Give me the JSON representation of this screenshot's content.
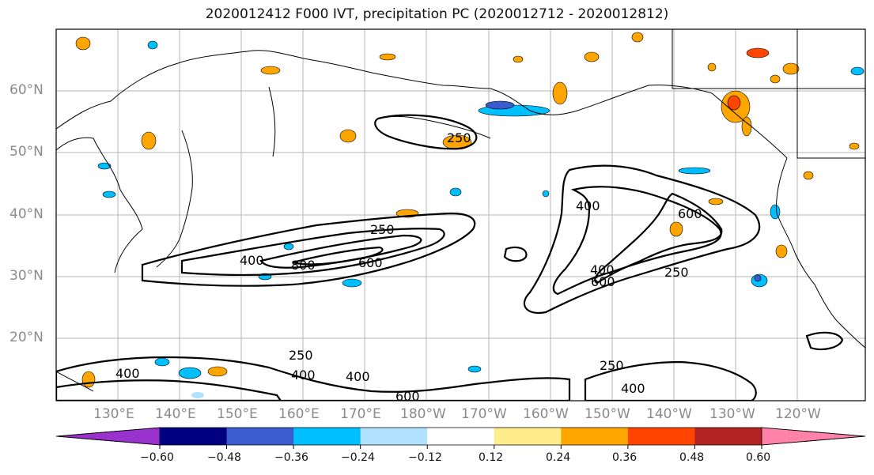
{
  "title": "2020012412 F000 IVT, precipitation PC (2020012712 - 2020012812)",
  "map": {
    "lat_labels": [
      "60°N",
      "50°N",
      "40°N",
      "30°N",
      "20°N"
    ],
    "lon_labels": [
      "130°E",
      "140°E",
      "150°E",
      "160°E",
      "170°E",
      "180°W",
      "170°W",
      "160°W",
      "150°W",
      "140°W",
      "130°W",
      "120°W"
    ],
    "lat_range": [
      10,
      70
    ],
    "lon_range": [
      121,
      252
    ],
    "ivt_contour_labels": [
      "250",
      "400",
      "600",
      "800"
    ]
  },
  "colorbar": {
    "ticks": [
      "−0.60",
      "−0.48",
      "−0.36",
      "−0.24",
      "−0.12",
      "0.12",
      "0.24",
      "0.36",
      "0.48",
      "0.60"
    ],
    "colors": [
      "#9932cc",
      "#000080",
      "#3a5ccc",
      "#00bfff",
      "#b0e2ff",
      "#ffffff",
      "#ffec8b",
      "#ffa500",
      "#ff4500",
      "#b22222",
      "#ff82ab"
    ],
    "extend": "both"
  }
}
